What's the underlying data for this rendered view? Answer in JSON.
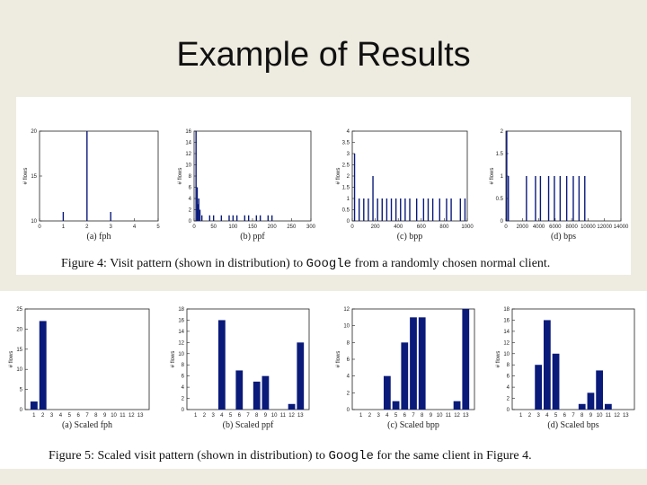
{
  "slide": {
    "title": "Example of Results"
  },
  "figure4": {
    "caption_pre": "Figure 4: Visit pattern (shown in distribution) to ",
    "caption_code": "Google",
    "caption_post": " from a randomly chosen normal client."
  },
  "figure5": {
    "caption_pre": "Figure 5: Scaled visit pattern (shown in distribution) to ",
    "caption_code": "Google",
    "caption_post": " for the same client in Figure 4."
  },
  "colors": {
    "bar": "#0a1a7a",
    "axis": "#222222"
  },
  "chart_data": [
    {
      "type": "bar",
      "subcaption": "(a)  fph",
      "ylabel": "# flows",
      "xlim": [
        0,
        5
      ],
      "ylim": [
        10,
        20
      ],
      "xticks": [
        0,
        1,
        2,
        3,
        4,
        5
      ],
      "yticks": [
        10,
        15,
        20
      ],
      "x": [
        1,
        2,
        3
      ],
      "values": [
        11,
        20,
        11
      ]
    },
    {
      "type": "bar",
      "subcaption": "(b)  ppf",
      "ylabel": "# flows",
      "xlim": [
        0,
        300
      ],
      "ylim": [
        0,
        16
      ],
      "xticks": [
        0,
        50,
        100,
        150,
        200,
        250,
        300
      ],
      "yticks": [
        0,
        2,
        4,
        6,
        8,
        10,
        12,
        14,
        16
      ],
      "x": [
        5,
        8,
        10,
        12,
        15,
        20,
        40,
        50,
        70,
        90,
        100,
        110,
        130,
        140,
        160,
        170,
        190,
        200
      ],
      "values": [
        16,
        6,
        3,
        4,
        2,
        1,
        1,
        1,
        1,
        1,
        1,
        1,
        1,
        1,
        1,
        1,
        1,
        1
      ]
    },
    {
      "type": "bar",
      "subcaption": "(c)  bpp",
      "ylabel": "# flows",
      "xlim": [
        0,
        1000
      ],
      "ylim": [
        0,
        4
      ],
      "xticks": [
        0,
        200,
        400,
        600,
        800,
        1000
      ],
      "yticks": [
        0,
        0.5,
        1,
        1.5,
        2,
        2.5,
        3,
        3.5,
        4
      ],
      "x": [
        20,
        60,
        100,
        140,
        180,
        220,
        260,
        300,
        340,
        380,
        420,
        460,
        500,
        560,
        620,
        660,
        700,
        760,
        820,
        860,
        940,
        980
      ],
      "values": [
        3,
        1,
        1,
        1,
        2,
        1,
        1,
        1,
        1,
        1,
        1,
        1,
        1,
        1,
        1,
        1,
        1,
        1,
        1,
        1,
        1,
        1
      ]
    },
    {
      "type": "bar",
      "subcaption": "(d)  bps",
      "ylabel": "# flows",
      "xlim": [
        0,
        14000
      ],
      "ylim": [
        0,
        2
      ],
      "xticks": [
        0,
        2000,
        4000,
        6000,
        8000,
        10000,
        12000,
        14000
      ],
      "yticks": [
        0,
        0.5,
        1,
        1.5,
        2
      ],
      "x": [
        100,
        300,
        2500,
        3600,
        4200,
        5200,
        5900,
        6600,
        7400,
        8200,
        8900,
        9600
      ],
      "values": [
        2,
        1,
        1,
        1,
        1,
        1,
        1,
        1,
        1,
        1,
        1,
        1
      ]
    },
    {
      "type": "bar",
      "subcaption": "(a)  Scaled fph",
      "ylabel": "# flows",
      "ylim": [
        0,
        25
      ],
      "yticks": [
        0,
        5,
        10,
        15,
        20,
        25
      ],
      "categories": [
        1,
        2,
        3,
        4,
        5,
        6,
        7,
        8,
        9,
        10,
        11,
        12,
        13
      ],
      "values": [
        2,
        22,
        0,
        0,
        0,
        0,
        0,
        0,
        0,
        0,
        0,
        0,
        0
      ]
    },
    {
      "type": "bar",
      "subcaption": "(b)  Scaled ppf",
      "ylabel": "# flows",
      "ylim": [
        0,
        18
      ],
      "yticks": [
        0,
        2,
        4,
        6,
        8,
        10,
        12,
        14,
        16,
        18
      ],
      "categories": [
        1,
        2,
        3,
        4,
        5,
        6,
        7,
        8,
        9,
        10,
        11,
        12,
        13
      ],
      "values": [
        0,
        0,
        0,
        16,
        0,
        7,
        0,
        5,
        6,
        0,
        0,
        1,
        12
      ]
    },
    {
      "type": "bar",
      "subcaption": "(c)  Scaled bpp",
      "ylabel": "# flows",
      "ylim": [
        0,
        12
      ],
      "yticks": [
        0,
        2,
        4,
        6,
        8,
        10,
        12
      ],
      "categories": [
        1,
        2,
        3,
        4,
        5,
        6,
        7,
        8,
        9,
        10,
        11,
        12,
        13
      ],
      "values": [
        0,
        0,
        0,
        4,
        1,
        8,
        11,
        11,
        0,
        0,
        0,
        1,
        12
      ]
    },
    {
      "type": "bar",
      "subcaption": "(d)  Scaled bps",
      "ylabel": "# flows",
      "ylim": [
        0,
        18
      ],
      "yticks": [
        0,
        2,
        4,
        6,
        8,
        10,
        12,
        14,
        16,
        18
      ],
      "categories": [
        1,
        2,
        3,
        4,
        5,
        6,
        7,
        8,
        9,
        10,
        11,
        12,
        13
      ],
      "values": [
        0,
        0,
        8,
        16,
        10,
        0,
        0,
        1,
        3,
        7,
        1,
        0,
        0
      ]
    }
  ]
}
